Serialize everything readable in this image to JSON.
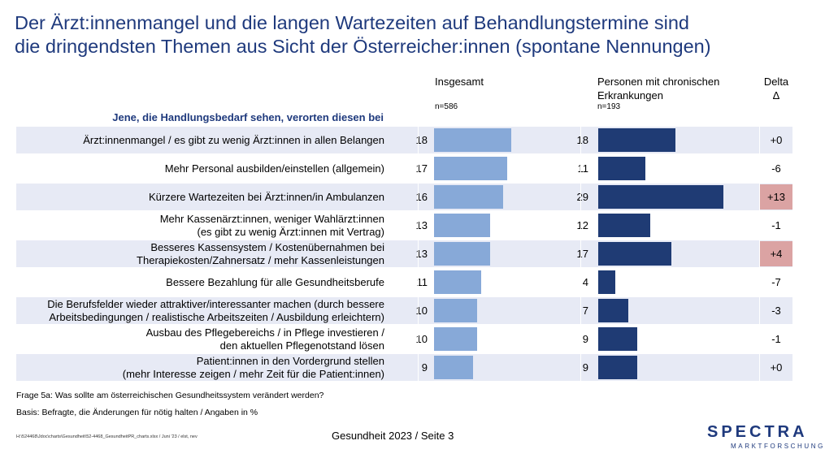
{
  "title_line1": "Der Ärzt:innenmangel und die langen Wartezeiten auf Behandlungstermine sind",
  "title_line2": "die dringendsten Themen aus Sicht der Österreicher:innen (spontane Nennungen)",
  "columns": {
    "total": {
      "label": "Insgesamt",
      "n": "n=586"
    },
    "chronic": {
      "label_line1": "Personen mit chronischen",
      "label_line2": "Erkrankungen",
      "n": "n=193"
    },
    "delta": {
      "label_line1": "Delta",
      "label_line2": "Δ"
    }
  },
  "intro": "Jene, die Handlungsbedarf sehen, verorten diesen bei",
  "colors": {
    "total": "#87a9d8",
    "chronic": "#1f3b74",
    "delta_highlight": "#dba3a3",
    "stripe": "#e7eaf5"
  },
  "chart_data": {
    "type": "bar",
    "orientation": "horizontal",
    "categories": [
      [
        "Ärzt:innenmangel / es gibt zu wenig Ärzt:innen in allen Belangen"
      ],
      [
        "Mehr Personal ausbilden/einstellen (allgemein)"
      ],
      [
        "Kürzere Wartezeiten bei Ärzt:innen/in Ambulanzen"
      ],
      [
        "Mehr Kassenärzt:innen, weniger Wahlärzt:innen",
        "(es gibt zu wenig Ärzt:innen mit Vertrag)"
      ],
      [
        "Besseres Kassensystem / Kostenübernahmen bei",
        "Therapiekosten/Zahnersatz / mehr Kassenleistungen"
      ],
      [
        "Bessere Bezahlung für alle Gesundheitsberufe"
      ],
      [
        "Die Berufsfelder wieder attraktiver/interessanter machen (durch bessere",
        "Arbeitsbedingungen / realistische Arbeitszeiten / Ausbildung erleichtern)"
      ],
      [
        "Ausbau des Pflegebereichs / in Pflege investieren /",
        "den aktuellen Pflegenotstand lösen"
      ],
      [
        "Patient:innen in den Vordergrund stellen",
        "(mehr Interesse zeigen / mehr Zeit für die Patient:innen)"
      ]
    ],
    "series": [
      {
        "name": "Insgesamt",
        "values": [
          18,
          17,
          16,
          13,
          13,
          11,
          10,
          10,
          9
        ]
      },
      {
        "name": "Personen mit chronischen Erkrankungen",
        "values": [
          18,
          11,
          29,
          12,
          17,
          4,
          7,
          9,
          9
        ]
      }
    ],
    "delta": [
      "+0",
      "-6",
      "+13",
      "-1",
      "+4",
      "-7",
      "-3",
      "-1",
      "+0"
    ],
    "delta_highlighted": [
      false,
      false,
      true,
      false,
      true,
      false,
      false,
      false,
      false
    ],
    "xlim": [
      0,
      30
    ],
    "grid": false
  },
  "notes": {
    "question": "Frage 5a: Was sollte am österreichischen Gesundheitssystem verändert werden?",
    "basis": "Basis: Befragte, die Änderungen für nötig halten / Angaben in %",
    "path": "H:\\524468\\Jdoc\\charts\\Gesundheit\\52-4468_GesundheitPR_charts.xlsx / Juni '23 / elst, nev"
  },
  "footer": "Gesundheit 2023  /  Seite 3",
  "logo": {
    "main": "SPECTRA",
    "sub": "MARKTFORSCHUNG"
  }
}
